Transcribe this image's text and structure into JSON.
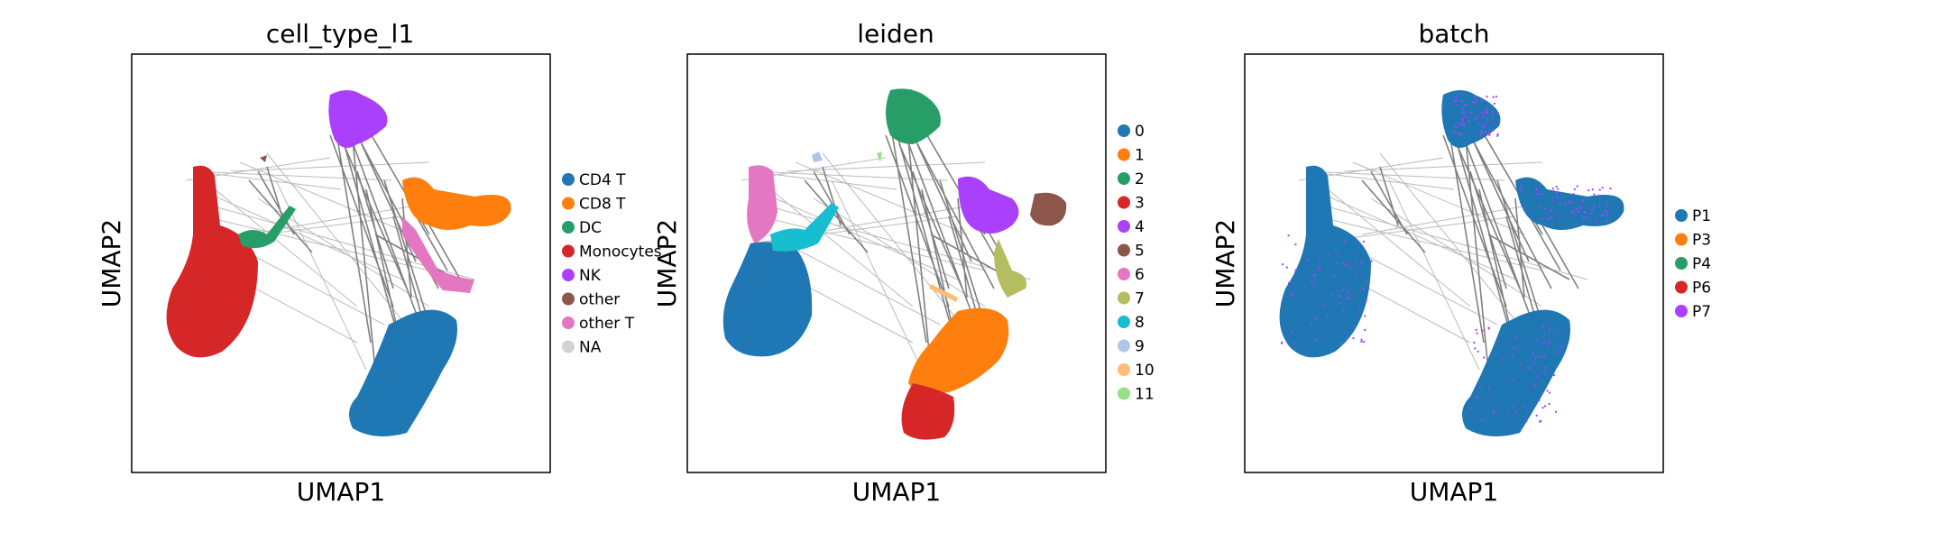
{
  "chart_data": [
    {
      "type": "scatter",
      "title": "cell_type_l1",
      "xlabel": "UMAP1",
      "ylabel": "UMAP2",
      "legend_position": "right",
      "categories": [
        "CD4 T",
        "CD8 T",
        "DC",
        "Monocytes",
        "NK",
        "other",
        "other T",
        "NA"
      ],
      "colors": [
        "#1f77b4",
        "#ff7f0e",
        "#279e68",
        "#d62728",
        "#aa40fc",
        "#8c564b",
        "#e377c2",
        "#d3d3d3"
      ],
      "axis_ticks": false,
      "grid": false
    },
    {
      "type": "scatter",
      "title": "leiden",
      "xlabel": "UMAP1",
      "ylabel": "UMAP2",
      "legend_position": "right",
      "categories": [
        "0",
        "1",
        "2",
        "3",
        "4",
        "5",
        "6",
        "7",
        "8",
        "9",
        "10",
        "11"
      ],
      "colors": [
        "#1f77b4",
        "#ff7f0e",
        "#279e68",
        "#d62728",
        "#aa40fc",
        "#8c564b",
        "#e377c2",
        "#b5bd61",
        "#17becf",
        "#aec7e8",
        "#ffbb78",
        "#98df8a"
      ],
      "axis_ticks": false,
      "grid": false
    },
    {
      "type": "scatter",
      "title": "batch",
      "xlabel": "UMAP1",
      "ylabel": "UMAP2",
      "legend_position": "right",
      "categories": [
        "P1",
        "P3",
        "P4",
        "P6",
        "P7"
      ],
      "colors": [
        "#1f77b4",
        "#ff7f0e",
        "#279e68",
        "#d62728",
        "#aa40fc"
      ],
      "axis_ticks": false,
      "grid": false
    }
  ]
}
